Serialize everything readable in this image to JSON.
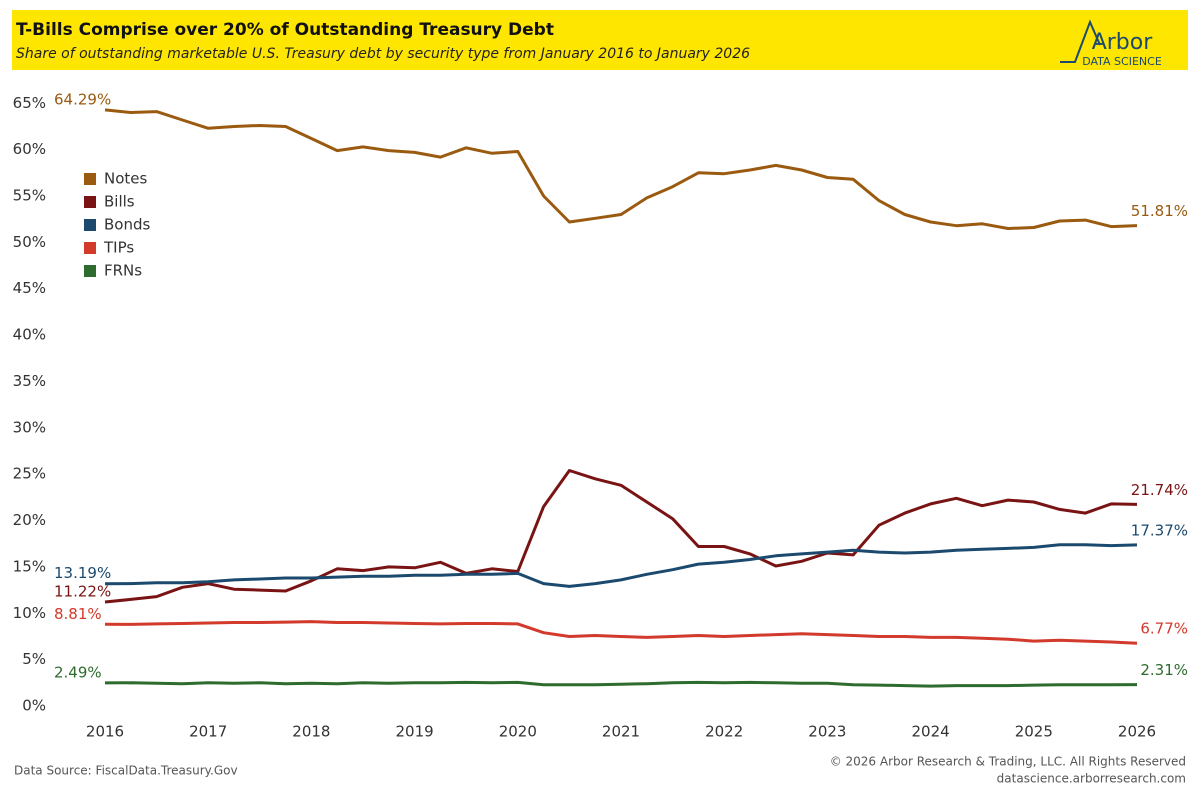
{
  "chart_data": {
    "type": "line",
    "title": "T-Bills Comprise over 20% of Outstanding Treasury Debt",
    "subtitle": "Share of outstanding marketable U.S. Treasury debt by security type from January 2016 to January 2026",
    "logo": {
      "name": "Arbor",
      "tagline": "DATA SCIENCE"
    },
    "source": "Data Source: FiscalData.Treasury.Gov",
    "copyright": "© 2026 Arbor Research & Trading, LLC. All Rights Reserved",
    "website": "datascience.arborresearch.com",
    "x": [
      2016,
      2016.25,
      2016.5,
      2016.75,
      2017,
      2017.25,
      2017.5,
      2017.75,
      2018,
      2018.25,
      2018.5,
      2018.75,
      2019,
      2019.25,
      2019.5,
      2019.75,
      2020,
      2020.25,
      2020.5,
      2020.75,
      2021,
      2021.25,
      2021.5,
      2021.75,
      2022,
      2022.25,
      2022.5,
      2022.75,
      2023,
      2023.25,
      2023.5,
      2023.75,
      2024,
      2024.25,
      2024.5,
      2024.75,
      2025,
      2025.25,
      2025.5,
      2025.75,
      2026
    ],
    "xlim": [
      2016,
      2026
    ],
    "xticks": [
      2016,
      2017,
      2018,
      2019,
      2020,
      2021,
      2022,
      2023,
      2024,
      2025,
      2026
    ],
    "ylim": [
      0,
      66
    ],
    "yticks": [
      {
        "value": 0,
        "label": "0%"
      },
      {
        "value": 5,
        "label": "5%"
      },
      {
        "value": 10,
        "label": "10%"
      },
      {
        "value": 15,
        "label": "15%"
      },
      {
        "value": 20,
        "label": "20%"
      },
      {
        "value": 25,
        "label": "25%"
      },
      {
        "value": 30,
        "label": "30%"
      },
      {
        "value": 35,
        "label": "35%"
      },
      {
        "value": 40,
        "label": "40%"
      },
      {
        "value": 45,
        "label": "45%"
      },
      {
        "value": 50,
        "label": "50%"
      },
      {
        "value": 55,
        "label": "55%"
      },
      {
        "value": 60,
        "label": "60%"
      },
      {
        "value": 65,
        "label": "65%"
      }
    ],
    "grid": false,
    "legend": "upper left",
    "series": [
      {
        "name": "Notes",
        "color": "#9a5a10",
        "values": [
          64.29,
          64.0,
          64.1,
          63.2,
          62.3,
          62.5,
          62.6,
          62.5,
          61.2,
          59.9,
          60.3,
          59.9,
          59.7,
          59.2,
          60.2,
          59.6,
          59.8,
          55.0,
          52.2,
          52.6,
          53.0,
          54.8,
          56.0,
          57.5,
          57.4,
          57.8,
          58.3,
          57.8,
          57.0,
          56.8,
          54.5,
          53.0,
          52.2,
          51.8,
          52.0,
          51.5,
          51.6,
          52.3,
          52.4,
          51.7,
          51.81
        ],
        "value_labels": [
          "64.29%",
          null,
          null,
          null,
          null,
          null,
          null,
          null,
          null,
          null,
          null,
          null,
          null,
          null,
          null,
          null,
          null,
          null,
          null,
          null,
          null,
          null,
          null,
          null,
          null,
          null,
          null,
          null,
          null,
          null,
          null,
          null,
          null,
          null,
          null,
          null,
          null,
          null,
          null,
          null,
          "51.81%"
        ]
      },
      {
        "name": "Bills",
        "color": "#7a1414",
        "values": [
          11.22,
          11.5,
          11.8,
          12.8,
          13.2,
          12.6,
          12.5,
          12.4,
          13.5,
          14.8,
          14.6,
          15.0,
          14.9,
          15.5,
          14.3,
          14.8,
          14.5,
          21.5,
          25.4,
          24.5,
          23.8,
          22.0,
          20.2,
          17.2,
          17.2,
          16.4,
          15.1,
          15.6,
          16.5,
          16.3,
          19.5,
          20.8,
          21.8,
          22.4,
          21.6,
          22.2,
          22.0,
          21.2,
          20.8,
          21.8,
          21.74
        ],
        "value_labels": [
          "11.22%",
          null,
          null,
          null,
          null,
          null,
          null,
          null,
          null,
          null,
          null,
          null,
          null,
          null,
          null,
          null,
          null,
          null,
          null,
          null,
          null,
          null,
          null,
          null,
          null,
          null,
          null,
          null,
          null,
          null,
          null,
          null,
          null,
          null,
          null,
          null,
          null,
          null,
          null,
          null,
          "21.74%"
        ]
      },
      {
        "name": "Bonds",
        "color": "#1b4a6e",
        "values": [
          13.19,
          13.2,
          13.3,
          13.3,
          13.4,
          13.6,
          13.7,
          13.8,
          13.8,
          13.9,
          14.0,
          14.0,
          14.1,
          14.1,
          14.2,
          14.2,
          14.3,
          13.2,
          12.9,
          13.2,
          13.6,
          14.2,
          14.7,
          15.3,
          15.5,
          15.8,
          16.2,
          16.4,
          16.6,
          16.8,
          16.6,
          16.5,
          16.6,
          16.8,
          16.9,
          17.0,
          17.1,
          17.4,
          17.4,
          17.3,
          17.37
        ],
        "value_labels": [
          "13.19%",
          null,
          null,
          null,
          null,
          null,
          null,
          null,
          null,
          null,
          null,
          null,
          null,
          null,
          null,
          null,
          null,
          null,
          null,
          null,
          null,
          null,
          null,
          null,
          null,
          null,
          null,
          null,
          null,
          null,
          null,
          null,
          null,
          null,
          null,
          null,
          null,
          null,
          null,
          null,
          "17.37%"
        ]
      },
      {
        "name": "TIPs",
        "color": "#d23a2c",
        "values": [
          8.81,
          8.8,
          8.85,
          8.9,
          8.95,
          9.0,
          9.0,
          9.05,
          9.1,
          9.0,
          9.0,
          8.95,
          8.9,
          8.85,
          8.9,
          8.9,
          8.85,
          7.9,
          7.5,
          7.6,
          7.5,
          7.4,
          7.5,
          7.6,
          7.5,
          7.6,
          7.7,
          7.8,
          7.7,
          7.6,
          7.5,
          7.5,
          7.4,
          7.4,
          7.3,
          7.2,
          7.0,
          7.1,
          7.0,
          6.9,
          6.77
        ],
        "value_labels": [
          "8.81%",
          null,
          null,
          null,
          null,
          null,
          null,
          null,
          null,
          null,
          null,
          null,
          null,
          null,
          null,
          null,
          null,
          null,
          null,
          null,
          null,
          null,
          null,
          null,
          null,
          null,
          null,
          null,
          null,
          null,
          null,
          null,
          null,
          null,
          null,
          null,
          null,
          null,
          null,
          null,
          "6.77%"
        ]
      },
      {
        "name": "FRNs",
        "color": "#2e6b2e",
        "values": [
          2.49,
          2.5,
          2.45,
          2.4,
          2.5,
          2.45,
          2.5,
          2.4,
          2.45,
          2.4,
          2.5,
          2.45,
          2.5,
          2.5,
          2.55,
          2.5,
          2.55,
          2.3,
          2.3,
          2.3,
          2.35,
          2.4,
          2.5,
          2.55,
          2.5,
          2.55,
          2.5,
          2.45,
          2.45,
          2.3,
          2.25,
          2.2,
          2.15,
          2.2,
          2.2,
          2.2,
          2.25,
          2.3,
          2.3,
          2.3,
          2.31
        ],
        "value_labels": [
          "2.49%",
          null,
          null,
          null,
          null,
          null,
          null,
          null,
          null,
          null,
          null,
          null,
          null,
          null,
          null,
          null,
          null,
          null,
          null,
          null,
          null,
          null,
          null,
          null,
          null,
          null,
          null,
          null,
          null,
          null,
          null,
          null,
          null,
          null,
          null,
          null,
          null,
          null,
          null,
          null,
          "2.31%"
        ]
      }
    ]
  }
}
